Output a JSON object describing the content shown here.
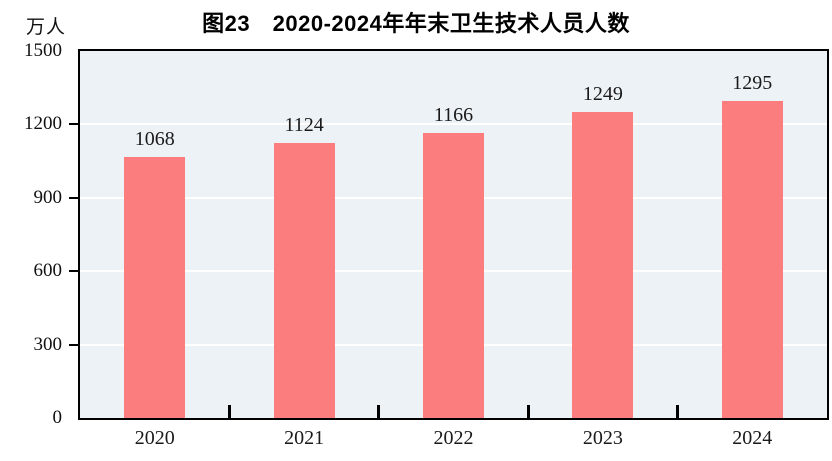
{
  "header": {
    "title": "图23　2020-2024年年末卫生技术人员人数",
    "unit_label": "万人"
  },
  "chart_data": {
    "type": "bar",
    "title": "图23　2020-2024年年末卫生技术人员人数",
    "unit": "万人",
    "categories": [
      "2020",
      "2021",
      "2022",
      "2023",
      "2024"
    ],
    "values": [
      1068,
      1124,
      1166,
      1249,
      1295
    ],
    "xlabel": "",
    "ylabel": "万人",
    "ylim": [
      0,
      1500
    ],
    "yticks": [
      0,
      300,
      600,
      900,
      1200,
      1500
    ],
    "grid": "horizontal-white",
    "legend_position": "none",
    "data_labels": true,
    "colors": {
      "bar": "#fc7d7d",
      "plot_background": "#edf2f6",
      "gridline": "#ffffff",
      "axis_border": "#000000",
      "text": "#111111"
    }
  }
}
